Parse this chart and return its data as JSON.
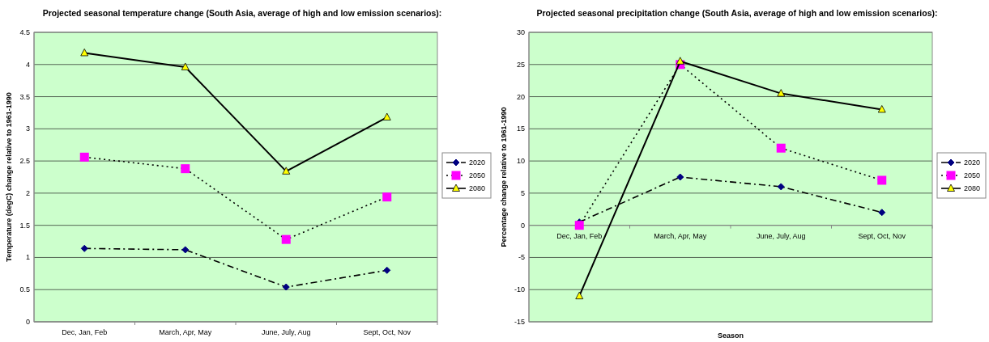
{
  "chart_data": [
    {
      "type": "line",
      "title": "Projected seasonal temperature change (South Asia, average of high and low emission scenarios):",
      "ylabel": "Temperature (degC) change relative to 1961-1990",
      "categories": [
        "Dec, Jan, Feb",
        "March, Apr, May",
        "June, July, Aug",
        "Sept, Oct, Nov"
      ],
      "series": [
        {
          "name": "2020",
          "color": "#000080",
          "values": [
            1.14,
            1.12,
            0.54,
            0.8
          ],
          "marker": "diamond",
          "line_style": "dashdot"
        },
        {
          "name": "2050",
          "color": "#ff00ff",
          "values": [
            2.56,
            2.38,
            1.28,
            1.94
          ],
          "marker": "square",
          "line_style": "dotted"
        },
        {
          "name": "2080",
          "color": "#ffff00",
          "values": [
            4.18,
            3.96,
            2.34,
            3.18
          ],
          "marker": "triangle",
          "line_style": "solid"
        }
      ],
      "ylim": [
        0,
        4.5
      ],
      "yticks": [
        0,
        0.5,
        1,
        1.5,
        2,
        2.5,
        3,
        3.5,
        4,
        4.5
      ],
      "grid": "y",
      "legend": "right"
    },
    {
      "type": "line",
      "title": "Projected seasonal precipitation change (South Asia, average of high and low emission scenarios):",
      "xlabel": "Season",
      "ylabel": "Percentage change relative to 1961-1990",
      "categories": [
        "Dec, Jan, Feb",
        "March, Apr, May",
        "June, July, Aug",
        "Sept, Oct, Nov"
      ],
      "series": [
        {
          "name": "2020",
          "color": "#000080",
          "values": [
            0.5,
            7.5,
            6,
            2
          ],
          "marker": "diamond",
          "line_style": "dashdot"
        },
        {
          "name": "2050",
          "color": "#ff00ff",
          "values": [
            0,
            25,
            12,
            7
          ],
          "marker": "square",
          "line_style": "dotted"
        },
        {
          "name": "2080",
          "color": "#ffff00",
          "values": [
            -11,
            25.5,
            20.5,
            18
          ],
          "marker": "triangle",
          "line_style": "solid"
        }
      ],
      "ylim": [
        -15,
        30
      ],
      "yticks": [
        -15,
        -10,
        -5,
        0,
        5,
        10,
        15,
        20,
        25,
        30
      ],
      "grid": "y",
      "legend": "right"
    }
  ]
}
